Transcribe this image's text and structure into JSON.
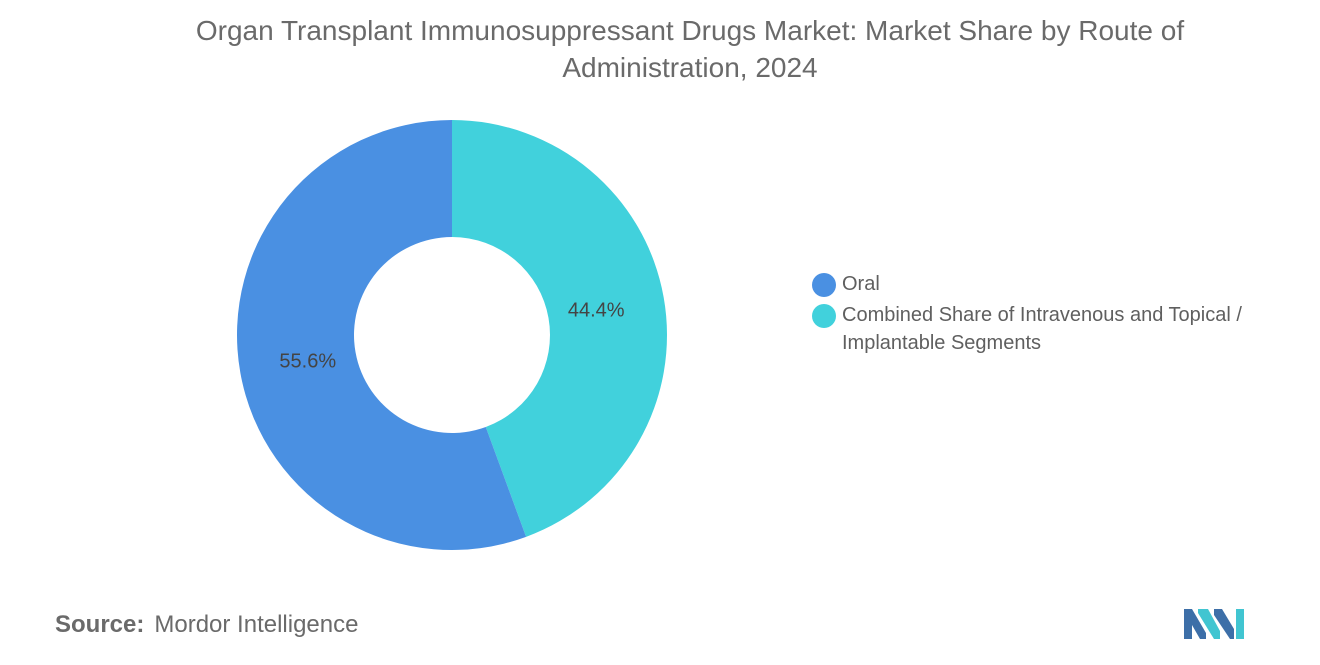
{
  "chart_data": {
    "type": "pie",
    "variant": "donut",
    "title": "Organ Transplant Immunosuppressant Drugs Market: Market Share by Route of Administration, 2024",
    "categories": [
      "Oral",
      "Combined Share of Intravenous and Topical / Implantable Segments"
    ],
    "values": [
      55.6,
      44.4
    ],
    "value_labels": [
      "55.6%",
      "44.4%"
    ],
    "colors": [
      "#4a90e2",
      "#41d1dc"
    ],
    "legend_position": "right"
  },
  "source": {
    "label": "Source:",
    "text": "Mordor Intelligence"
  },
  "logo": {
    "icon": "mordor-intelligence-logo",
    "colors": [
      "#3d6fa8",
      "#41c5d1"
    ]
  }
}
